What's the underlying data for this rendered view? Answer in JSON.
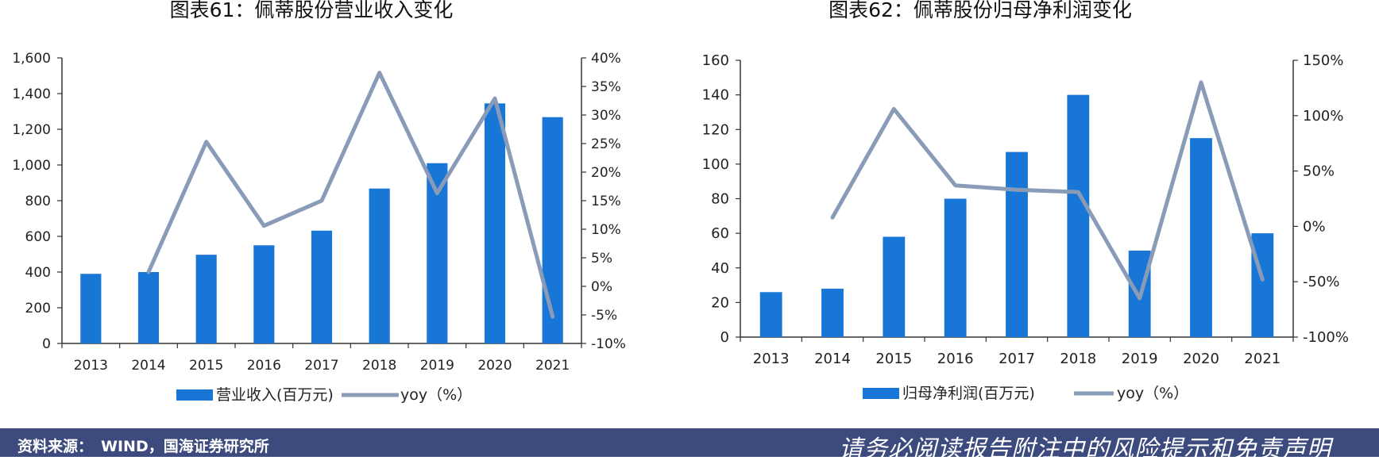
{
  "chart_data": [
    {
      "type": "bar",
      "title": "图表61：佩蒂股份营业收入变化",
      "categories": [
        "2013",
        "2014",
        "2015",
        "2016",
        "2017",
        "2018",
        "2019",
        "2020",
        "2021"
      ],
      "series": [
        {
          "name": "营业收入(百万元)",
          "type": "bar",
          "axis": "left",
          "values": [
            390,
            400,
            497,
            550,
            632,
            868,
            1010,
            1345,
            1268
          ]
        },
        {
          "name": "yoy（%）",
          "type": "line",
          "axis": "right",
          "values": [
            null,
            2.5,
            25.3,
            10.6,
            15.0,
            37.4,
            16.3,
            32.9,
            -5.3
          ]
        }
      ],
      "y_left": {
        "min": 0,
        "max": 1600,
        "step": 200,
        "ticks": [
          "0",
          "200",
          "400",
          "600",
          "800",
          "1,000",
          "1,200",
          "1,400",
          "1,600"
        ]
      },
      "y_right": {
        "min": -10,
        "max": 40,
        "step": 5,
        "ticks": [
          "-10%",
          "-5%",
          "0%",
          "5%",
          "10%",
          "15%",
          "20%",
          "25%",
          "30%",
          "35%",
          "40%"
        ]
      },
      "legend_position": "bottom",
      "grid": false,
      "colors": {
        "bar": "#1877d6",
        "line": "#8a9bb8"
      }
    },
    {
      "type": "bar",
      "title": "图表62：佩蒂股份归母净利润变化",
      "categories": [
        "2013",
        "2014",
        "2015",
        "2016",
        "2017",
        "2018",
        "2019",
        "2020",
        "2021"
      ],
      "series": [
        {
          "name": "归母净利润(百万元)",
          "type": "bar",
          "axis": "left",
          "values": [
            26,
            28,
            58,
            80,
            107,
            140,
            50,
            115,
            60
          ]
        },
        {
          "name": "yoy（%）",
          "type": "line",
          "axis": "right",
          "values": [
            null,
            8,
            106,
            37,
            33,
            31,
            -65,
            130,
            -48
          ]
        }
      ],
      "y_left": {
        "min": 0,
        "max": 160,
        "step": 20,
        "ticks": [
          "0",
          "20",
          "40",
          "60",
          "80",
          "100",
          "120",
          "140",
          "160"
        ]
      },
      "y_right": {
        "min": -100,
        "max": 150,
        "step": 50,
        "ticks": [
          "-100%",
          "-50%",
          "0%",
          "50%",
          "100%",
          "150%"
        ]
      },
      "legend_position": "bottom",
      "grid": false,
      "colors": {
        "bar": "#1877d6",
        "line": "#8a9bb8"
      }
    }
  ],
  "footer": {
    "source_label": "资料来源：",
    "source_text": "WIND，国海证券研究所",
    "disclaimer": "请务必阅读报告附注中的风险提示和免责声明",
    "background": "#3d4a7e"
  }
}
